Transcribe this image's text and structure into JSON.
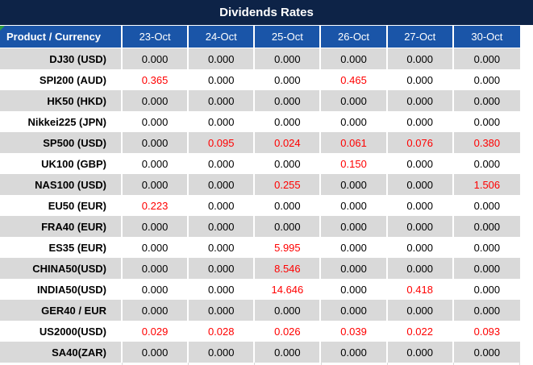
{
  "page": {
    "title": "Dividends Rates"
  },
  "colors": {
    "title_bar_bg": "#0d2347",
    "header_bg": "#1a55a8",
    "row_alt_bg": "#d9d9d9",
    "row_bg": "#ffffff",
    "highlight_text": "#ff0000",
    "text": "#000000",
    "corner_marker": "#2e9e3e"
  },
  "chart_data": {
    "type": "table",
    "title": "Dividends Rates",
    "columns": [
      "Product / Currency",
      "23-Oct",
      "24-Oct",
      "25-Oct",
      "26-Oct",
      "27-Oct",
      "30-Oct"
    ],
    "rows": [
      {
        "product": "DJ30 (USD)",
        "values": [
          "0.000",
          "0.000",
          "0.000",
          "0.000",
          "0.000",
          "0.000"
        ],
        "red": [
          false,
          false,
          false,
          false,
          false,
          false
        ]
      },
      {
        "product": "SPI200 (AUD)",
        "values": [
          "0.365",
          "0.000",
          "0.000",
          "0.465",
          "0.000",
          "0.000"
        ],
        "red": [
          true,
          false,
          false,
          true,
          false,
          false
        ]
      },
      {
        "product": "HK50 (HKD)",
        "values": [
          "0.000",
          "0.000",
          "0.000",
          "0.000",
          "0.000",
          "0.000"
        ],
        "red": [
          false,
          false,
          false,
          false,
          false,
          false
        ]
      },
      {
        "product": "Nikkei225 (JPN)",
        "values": [
          "0.000",
          "0.000",
          "0.000",
          "0.000",
          "0.000",
          "0.000"
        ],
        "red": [
          false,
          false,
          false,
          false,
          false,
          false
        ]
      },
      {
        "product": "SP500 (USD)",
        "values": [
          "0.000",
          "0.095",
          "0.024",
          "0.061",
          "0.076",
          "0.380"
        ],
        "red": [
          false,
          true,
          true,
          true,
          true,
          true
        ]
      },
      {
        "product": "UK100 (GBP)",
        "values": [
          "0.000",
          "0.000",
          "0.000",
          "0.150",
          "0.000",
          "0.000"
        ],
        "red": [
          false,
          false,
          false,
          true,
          false,
          false
        ]
      },
      {
        "product": "NAS100 (USD)",
        "values": [
          "0.000",
          "0.000",
          "0.255",
          "0.000",
          "0.000",
          "1.506"
        ],
        "red": [
          false,
          false,
          true,
          false,
          false,
          true
        ]
      },
      {
        "product": "EU50 (EUR)",
        "values": [
          "0.223",
          "0.000",
          "0.000",
          "0.000",
          "0.000",
          "0.000"
        ],
        "red": [
          true,
          false,
          false,
          false,
          false,
          false
        ]
      },
      {
        "product": "FRA40 (EUR)",
        "values": [
          "0.000",
          "0.000",
          "0.000",
          "0.000",
          "0.000",
          "0.000"
        ],
        "red": [
          false,
          false,
          false,
          false,
          false,
          false
        ]
      },
      {
        "product": "ES35 (EUR)",
        "values": [
          "0.000",
          "0.000",
          "5.995",
          "0.000",
          "0.000",
          "0.000"
        ],
        "red": [
          false,
          false,
          true,
          false,
          false,
          false
        ]
      },
      {
        "product": "CHINA50(USD)",
        "values": [
          "0.000",
          "0.000",
          "8.546",
          "0.000",
          "0.000",
          "0.000"
        ],
        "red": [
          false,
          false,
          true,
          false,
          false,
          false
        ]
      },
      {
        "product": "INDIA50(USD)",
        "values": [
          "0.000",
          "0.000",
          "14.646",
          "0.000",
          "0.418",
          "0.000"
        ],
        "red": [
          false,
          false,
          true,
          false,
          true,
          false
        ]
      },
      {
        "product": "GER40 / EUR",
        "values": [
          "0.000",
          "0.000",
          "0.000",
          "0.000",
          "0.000",
          "0.000"
        ],
        "red": [
          false,
          false,
          false,
          false,
          false,
          false
        ]
      },
      {
        "product": "US2000(USD)",
        "values": [
          "0.029",
          "0.028",
          "0.026",
          "0.039",
          "0.022",
          "0.093"
        ],
        "red": [
          true,
          true,
          true,
          true,
          true,
          true
        ]
      },
      {
        "product": "SA40(ZAR)",
        "values": [
          "0.000",
          "0.000",
          "0.000",
          "0.000",
          "0.000",
          "0.000"
        ],
        "red": [
          false,
          false,
          false,
          false,
          false,
          false
        ]
      }
    ]
  }
}
